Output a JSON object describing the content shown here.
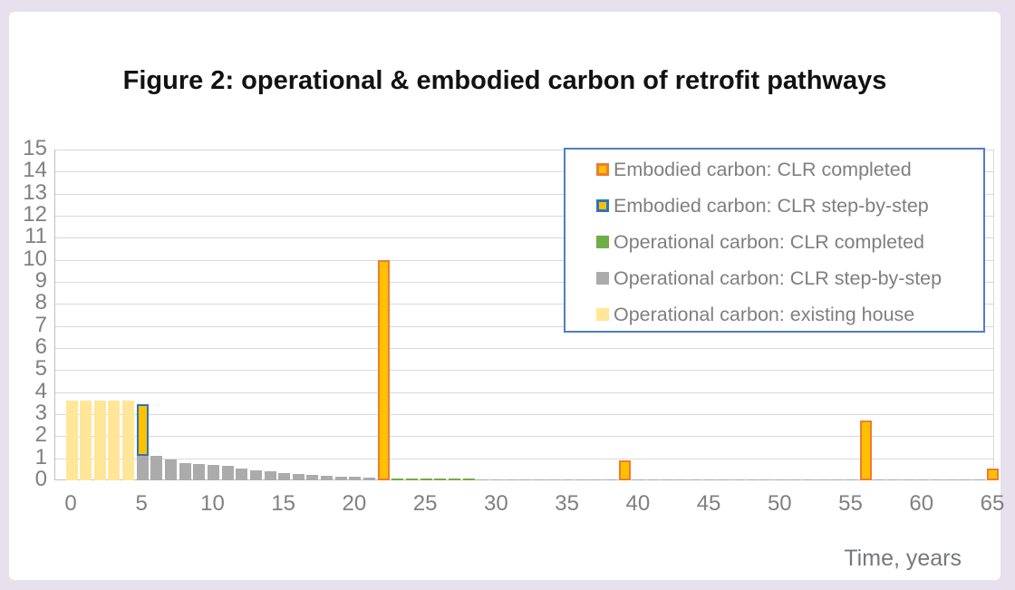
{
  "figure": {
    "title": "Figure 2: operational & embodied carbon of retrofit pathways",
    "xlabel": "Time, years"
  },
  "legend": {
    "border_color": "#537CC4",
    "items": [
      {
        "label": "Embodied carbon: CLR completed",
        "fill": "#FFC000",
        "border": "#ED7D31"
      },
      {
        "label": "Embodied carbon: CLR step-by-step",
        "fill": "#FFC000",
        "border": "#2E75B6"
      },
      {
        "label": "Operational carbon: CLR completed",
        "fill": "#70AD47",
        "border": null
      },
      {
        "label": "Operational carbon: CLR step-by-step",
        "fill": "#ABABAB",
        "border": null
      },
      {
        "label": "Operational carbon: existing house",
        "fill": "#FFE699",
        "border": null
      }
    ]
  },
  "chart_data": {
    "type": "bar",
    "title": "Figure 2: operational & embodied carbon of retrofit pathways",
    "xlabel": "Time, years",
    "ylabel": "",
    "x_ticks": [
      0,
      5,
      10,
      15,
      20,
      25,
      30,
      35,
      40,
      45,
      50,
      55,
      60,
      65
    ],
    "ylim": [
      0,
      15
    ],
    "y_tick_step": 1,
    "grid": "horizontal",
    "legend_position": "top-right-inside",
    "series": [
      {
        "name": "Operational carbon: existing house",
        "key": "op_existing",
        "fill": "#FFE699",
        "border": null,
        "points": [
          [
            0,
            3.6
          ],
          [
            1,
            3.6
          ],
          [
            2,
            3.6
          ],
          [
            3,
            3.6
          ],
          [
            4,
            3.6
          ]
        ]
      },
      {
        "name": "Operational carbon: CLR step-by-step",
        "key": "op_step",
        "fill": "#ABABAB",
        "border": null,
        "points": [
          [
            5,
            1.15
          ],
          [
            6,
            1.1
          ],
          [
            7,
            0.95
          ],
          [
            8,
            0.8
          ],
          [
            9,
            0.75
          ],
          [
            10,
            0.7
          ],
          [
            11,
            0.65
          ],
          [
            12,
            0.55
          ],
          [
            13,
            0.45
          ],
          [
            14,
            0.4
          ],
          [
            15,
            0.32
          ],
          [
            16,
            0.27
          ],
          [
            17,
            0.23
          ],
          [
            18,
            0.2
          ],
          [
            19,
            0.18
          ],
          [
            20,
            0.15
          ],
          [
            21,
            0.12
          ]
        ],
        "tail": {
          "from": 22,
          "to": 65,
          "value": 0.05
        }
      },
      {
        "name": "Operational carbon: CLR completed",
        "key": "op_completed",
        "fill": "#70AD47",
        "border": null,
        "points": [],
        "tail": {
          "from": 23,
          "to": 28,
          "value": 0.08
        }
      },
      {
        "name": "Embodied carbon: CLR step-by-step",
        "key": "emb_step",
        "fill": "#FFC000",
        "border": "#2E75B6",
        "base": 1.1,
        "points": [
          [
            5,
            2.35
          ]
        ]
      },
      {
        "name": "Embodied carbon: CLR completed",
        "key": "emb_completed",
        "fill": "#FFC000",
        "border": "#ED7D31",
        "points": [
          [
            22,
            10
          ],
          [
            39,
            0.9
          ],
          [
            56,
            2.7
          ],
          [
            65,
            0.55
          ]
        ]
      }
    ]
  }
}
